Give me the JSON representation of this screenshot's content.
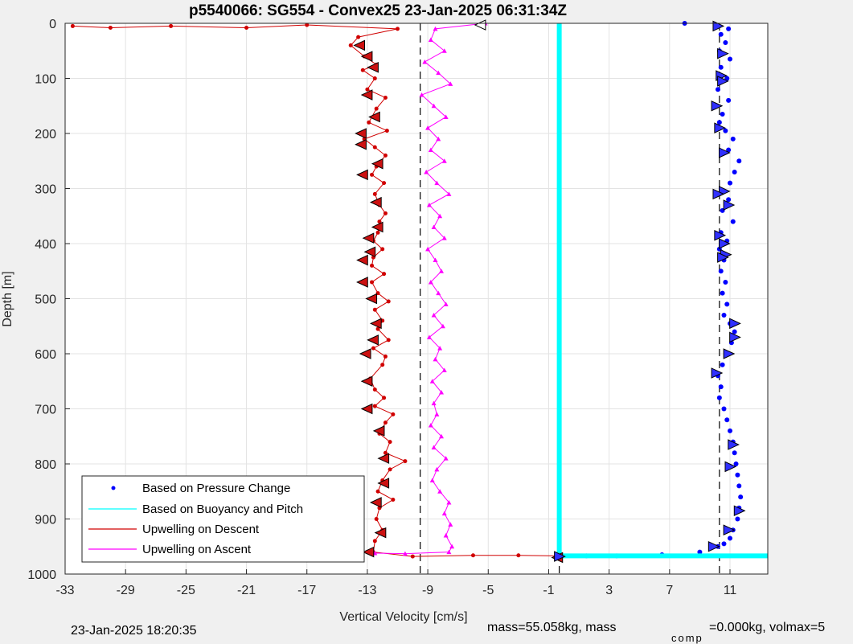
{
  "chart_data": {
    "type": "scatter",
    "title": "p5540066: SG554 - Convex25 23-Jan-2025 06:31:34Z",
    "xlabel": "Vertical Velocity [cm/s]",
    "ylabel": "Depth [m]",
    "xlim": [
      -33,
      13.5
    ],
    "ylim": [
      0,
      1000
    ],
    "y_reversed": true,
    "grid": true,
    "x_ticks": [
      -33,
      -29,
      -25,
      -21,
      -17,
      -13,
      -9,
      -5,
      -1,
      3,
      7,
      11
    ],
    "y_ticks": [
      0,
      100,
      200,
      300,
      400,
      500,
      600,
      700,
      800,
      900,
      1000
    ],
    "legend_position": "bottom-left",
    "reference_lines": [
      -9.5,
      -0.3,
      10.3
    ],
    "series": [
      {
        "name": "Based on Pressure Change",
        "color": "#0000ff",
        "marker": "dot",
        "points": [
          [
            8,
            0
          ],
          [
            10.2,
            5
          ],
          [
            10.9,
            10
          ],
          [
            10.4,
            20
          ],
          [
            10.7,
            35
          ],
          [
            10.3,
            50
          ],
          [
            11.0,
            65
          ],
          [
            10.4,
            80
          ],
          [
            10.8,
            100
          ],
          [
            10.2,
            120
          ],
          [
            10.9,
            140
          ],
          [
            10.0,
            150
          ],
          [
            10.5,
            165
          ],
          [
            10.3,
            180
          ],
          [
            10.7,
            195
          ],
          [
            11.2,
            210
          ],
          [
            10.9,
            230
          ],
          [
            11.6,
            250
          ],
          [
            11.3,
            270
          ],
          [
            11.0,
            290
          ],
          [
            10.6,
            305
          ],
          [
            10.9,
            320
          ],
          [
            10.5,
            340
          ],
          [
            11.2,
            360
          ],
          [
            10.4,
            380
          ],
          [
            10.8,
            395
          ],
          [
            10.3,
            410
          ],
          [
            10.6,
            430
          ],
          [
            10.4,
            450
          ],
          [
            10.7,
            470
          ],
          [
            10.5,
            490
          ],
          [
            10.8,
            510
          ],
          [
            10.6,
            530
          ],
          [
            11.0,
            545
          ],
          [
            11.3,
            560
          ],
          [
            11.1,
            580
          ],
          [
            10.8,
            600
          ],
          [
            10.5,
            620
          ],
          [
            10.2,
            640
          ],
          [
            10.4,
            660
          ],
          [
            10.3,
            680
          ],
          [
            10.6,
            700
          ],
          [
            10.8,
            720
          ],
          [
            11.0,
            740
          ],
          [
            11.2,
            760
          ],
          [
            11.3,
            780
          ],
          [
            11.4,
            800
          ],
          [
            11.5,
            820
          ],
          [
            11.6,
            840
          ],
          [
            11.7,
            860
          ],
          [
            11.6,
            880
          ],
          [
            11.5,
            900
          ],
          [
            11.2,
            920
          ],
          [
            11.0,
            935
          ],
          [
            10.6,
            945
          ],
          [
            10.2,
            950
          ],
          [
            9.0,
            960
          ],
          [
            6.5,
            965
          ],
          [
            3.5,
            967
          ],
          [
            1.5,
            967
          ]
        ]
      },
      {
        "name": "Based on Buoyancy and Pitch",
        "color": "#00ffff",
        "marker": "line",
        "points": [
          [
            -0.3,
            0
          ],
          [
            -0.3,
            967
          ],
          [
            13.5,
            967
          ]
        ]
      },
      {
        "name": "Upwelling on Descent",
        "color": "#d00000",
        "marker": "dot-line",
        "points": [
          [
            -32.5,
            5
          ],
          [
            -30,
            8
          ],
          [
            -26,
            5
          ],
          [
            -21,
            8
          ],
          [
            -17,
            3
          ],
          [
            -11,
            10
          ],
          [
            -13.6,
            25
          ],
          [
            -14.1,
            40
          ],
          [
            -13.2,
            60
          ],
          [
            -12.4,
            75
          ],
          [
            -13.3,
            85
          ],
          [
            -12.5,
            100
          ],
          [
            -13.0,
            120
          ],
          [
            -11.8,
            135
          ],
          [
            -12.4,
            155
          ],
          [
            -12.9,
            180
          ],
          [
            -11.7,
            195
          ],
          [
            -13.2,
            210
          ],
          [
            -12.5,
            225
          ],
          [
            -11.8,
            240
          ],
          [
            -12.4,
            260
          ],
          [
            -12.7,
            275
          ],
          [
            -11.9,
            290
          ],
          [
            -12.5,
            310
          ],
          [
            -12.2,
            330
          ],
          [
            -11.8,
            345
          ],
          [
            -12.2,
            360
          ],
          [
            -12.3,
            380
          ],
          [
            -12.6,
            395
          ],
          [
            -12.0,
            410
          ],
          [
            -12.6,
            425
          ],
          [
            -12.7,
            440
          ],
          [
            -11.9,
            455
          ],
          [
            -12.7,
            470
          ],
          [
            -12.3,
            490
          ],
          [
            -11.6,
            505
          ],
          [
            -12.5,
            520
          ],
          [
            -12.0,
            540
          ],
          [
            -12.3,
            555
          ],
          [
            -11.6,
            575
          ],
          [
            -12.6,
            590
          ],
          [
            -11.8,
            605
          ],
          [
            -12.0,
            620
          ],
          [
            -12.8,
            645
          ],
          [
            -12.5,
            665
          ],
          [
            -11.9,
            680
          ],
          [
            -12.5,
            695
          ],
          [
            -11.3,
            710
          ],
          [
            -11.8,
            725
          ],
          [
            -12.2,
            745
          ],
          [
            -11.5,
            760
          ],
          [
            -11.8,
            780
          ],
          [
            -10.5,
            795
          ],
          [
            -11.5,
            810
          ],
          [
            -12.0,
            830
          ],
          [
            -12.3,
            850
          ],
          [
            -11.3,
            865
          ],
          [
            -12.2,
            880
          ],
          [
            -12.4,
            900
          ],
          [
            -12.0,
            920
          ],
          [
            -12.5,
            940
          ],
          [
            -12.6,
            960
          ],
          [
            -10.0,
            968
          ],
          [
            -6.0,
            966
          ],
          [
            -3.0,
            966
          ],
          [
            -0.5,
            967
          ]
        ]
      },
      {
        "name": "Upwelling on Ascent",
        "color": "#ff00ff",
        "marker": "triangle-line",
        "points": [
          [
            -5.2,
            0
          ],
          [
            -8.5,
            10
          ],
          [
            -8.8,
            30
          ],
          [
            -7.9,
            50
          ],
          [
            -9.2,
            70
          ],
          [
            -8.3,
            90
          ],
          [
            -7.5,
            110
          ],
          [
            -9.4,
            130
          ],
          [
            -8.6,
            150
          ],
          [
            -7.8,
            170
          ],
          [
            -9.0,
            190
          ],
          [
            -8.3,
            210
          ],
          [
            -8.8,
            230
          ],
          [
            -7.9,
            250
          ],
          [
            -9.1,
            270
          ],
          [
            -8.4,
            290
          ],
          [
            -7.6,
            310
          ],
          [
            -8.9,
            330
          ],
          [
            -8.2,
            350
          ],
          [
            -8.6,
            370
          ],
          [
            -7.9,
            390
          ],
          [
            -9.0,
            410
          ],
          [
            -8.5,
            430
          ],
          [
            -8.1,
            450
          ],
          [
            -8.8,
            470
          ],
          [
            -8.3,
            490
          ],
          [
            -7.8,
            510
          ],
          [
            -8.6,
            530
          ],
          [
            -8.0,
            550
          ],
          [
            -8.9,
            570
          ],
          [
            -8.2,
            590
          ],
          [
            -8.5,
            610
          ],
          [
            -7.9,
            630
          ],
          [
            -8.7,
            650
          ],
          [
            -8.1,
            670
          ],
          [
            -8.6,
            690
          ],
          [
            -8.4,
            710
          ],
          [
            -8.8,
            730
          ],
          [
            -8.1,
            750
          ],
          [
            -8.6,
            770
          ],
          [
            -7.8,
            790
          ],
          [
            -8.4,
            810
          ],
          [
            -8.7,
            830
          ],
          [
            -8.2,
            850
          ],
          [
            -7.6,
            870
          ],
          [
            -7.9,
            890
          ],
          [
            -7.5,
            910
          ],
          [
            -7.8,
            930
          ],
          [
            -7.4,
            950
          ],
          [
            -7.6,
            960
          ],
          [
            -10.5,
            963
          ],
          [
            -12.5,
            962
          ]
        ]
      }
    ],
    "descent_markers": [
      [
        -13.5,
        40
      ],
      [
        -13.0,
        60
      ],
      [
        -12.6,
        80
      ],
      [
        -13.0,
        130
      ],
      [
        -12.5,
        170
      ],
      [
        -13.4,
        200
      ],
      [
        -13.4,
        220
      ],
      [
        -12.3,
        255
      ],
      [
        -13.3,
        275
      ],
      [
        -12.4,
        325
      ],
      [
        -12.3,
        370
      ],
      [
        -12.9,
        390
      ],
      [
        -12.8,
        415
      ],
      [
        -13.3,
        430
      ],
      [
        -13.3,
        470
      ],
      [
        -12.7,
        500
      ],
      [
        -12.4,
        545
      ],
      [
        -12.6,
        575
      ],
      [
        -13.1,
        600
      ],
      [
        -13.0,
        650
      ],
      [
        -13.0,
        700
      ],
      [
        -12.2,
        740
      ],
      [
        -11.9,
        790
      ],
      [
        -11.9,
        835
      ],
      [
        -12.4,
        870
      ],
      [
        -12.1,
        925
      ],
      [
        -12.9,
        960
      ],
      [
        -0.4,
        970
      ]
    ],
    "ascent_markers": [
      [
        -5.5,
        3
      ]
    ],
    "pressure_markers": [
      [
        10.2,
        5
      ],
      [
        10.5,
        55
      ],
      [
        10.4,
        95
      ],
      [
        10.5,
        105
      ],
      [
        10.1,
        150
      ],
      [
        10.3,
        190
      ],
      [
        10.6,
        235
      ],
      [
        10.6,
        305
      ],
      [
        10.2,
        310
      ],
      [
        10.9,
        330
      ],
      [
        10.3,
        385
      ],
      [
        10.6,
        400
      ],
      [
        10.7,
        420
      ],
      [
        10.5,
        425
      ],
      [
        11.3,
        545
      ],
      [
        11.3,
        570
      ],
      [
        10.9,
        600
      ],
      [
        11.2,
        765
      ],
      [
        11.0,
        805
      ],
      [
        11.6,
        885
      ],
      [
        10.9,
        920
      ],
      [
        10.1,
        635
      ],
      [
        9.9,
        950
      ],
      [
        -0.3,
        968
      ]
    ]
  },
  "footer": {
    "timestamp": "23-Jan-2025 18:20:35",
    "mass_text": "mass=55.058kg, mass",
    "comp_sub": "comp",
    "volmax_text": "=0.000kg, volmax=5"
  }
}
